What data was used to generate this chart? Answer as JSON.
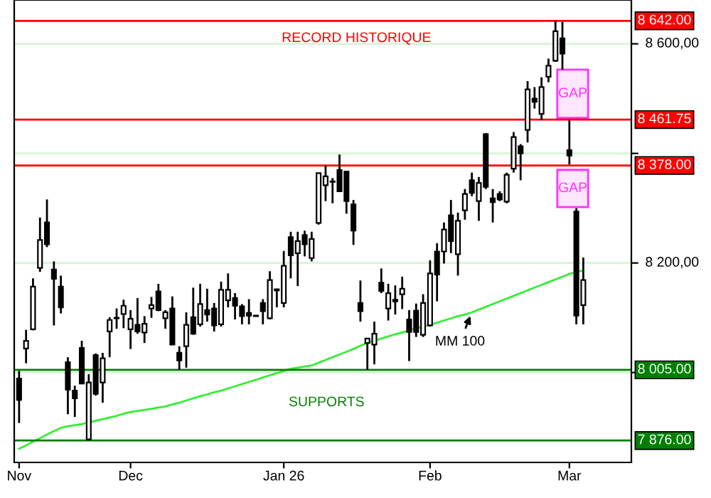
{
  "chart_data": {
    "type": "candlestick",
    "categories": [
      "Nov",
      null,
      null,
      null,
      null,
      null,
      null,
      null,
      null,
      null,
      null,
      null,
      null,
      null,
      null,
      null,
      "Dec",
      null,
      null,
      null,
      null,
      null,
      null,
      null,
      null,
      null,
      null,
      null,
      null,
      null,
      null,
      null,
      null,
      null,
      null,
      null,
      null,
      null,
      "Jan 26",
      null,
      null,
      null,
      null,
      null,
      null,
      null,
      null,
      null,
      null,
      null,
      null,
      null,
      null,
      null,
      null,
      null,
      null,
      null,
      null,
      "Feb",
      null,
      null,
      null,
      null,
      null,
      null,
      null,
      null,
      null,
      null,
      null,
      null,
      null,
      null,
      null,
      null,
      null,
      null,
      null,
      "Mar",
      null,
      null
    ],
    "ohlc": [
      [
        7989,
        8003,
        7908,
        7950
      ],
      [
        8044,
        8078,
        8017,
        8058
      ],
      [
        8079,
        8172,
        8077,
        8157
      ],
      [
        8191,
        8283,
        8184,
        8242
      ],
      [
        8274,
        8316,
        8229,
        8234
      ],
      [
        8188,
        8203,
        8086,
        8171
      ],
      [
        8157,
        8177,
        8108,
        8119
      ],
      [
        8019,
        8028,
        7924,
        7969
      ],
      [
        7967,
        7976,
        7919,
        7953
      ],
      [
        8045,
        8058,
        7980,
        7980
      ],
      [
        7878,
        7997,
        7876,
        7982
      ],
      [
        8032,
        8035,
        7958,
        7961
      ],
      [
        7982,
        8036,
        7945,
        8026
      ],
      [
        8075,
        8101,
        8028,
        8096
      ],
      [
        8099,
        8117,
        8080,
        8100
      ],
      [
        8107,
        8133,
        8081,
        8122
      ],
      [
        8079,
        8114,
        8043,
        8098
      ],
      [
        8087,
        8136,
        8071,
        8075
      ],
      [
        8073,
        8103,
        8054,
        8089
      ],
      [
        8117,
        8138,
        8100,
        8123
      ],
      [
        8148,
        8162,
        8112,
        8114
      ],
      [
        8099,
        8114,
        8080,
        8110
      ],
      [
        8117,
        8139,
        8051,
        8051
      ],
      [
        8036,
        8048,
        8005,
        8022
      ],
      [
        8048,
        8110,
        8009,
        8087
      ],
      [
        8101,
        8155,
        8069,
        8071
      ],
      [
        8088,
        8162,
        8084,
        8125
      ],
      [
        8114,
        8153,
        8093,
        8106
      ],
      [
        8117,
        8127,
        8075,
        8086
      ],
      [
        8088,
        8166,
        8084,
        8151
      ],
      [
        8132,
        8181,
        8119,
        8151
      ],
      [
        8136,
        8145,
        8097,
        8122
      ],
      [
        8121,
        8125,
        8088,
        8103
      ],
      [
        8109,
        8134,
        8088,
        8104
      ],
      [
        8104,
        8105,
        8102,
        8103
      ],
      [
        8127,
        8134,
        8088,
        8112
      ],
      [
        8099,
        8185,
        8097,
        8169
      ],
      [
        8152,
        8153,
        8119,
        8150
      ],
      [
        8127,
        8222,
        8119,
        8195
      ],
      [
        8247,
        8257,
        8172,
        8214
      ],
      [
        8218,
        8257,
        8158,
        8240
      ],
      [
        8251,
        8259,
        8212,
        8234
      ],
      [
        8209,
        8257,
        8203,
        8244
      ],
      [
        8273,
        8365,
        8270,
        8364
      ],
      [
        8342,
        8378,
        8313,
        8358
      ],
      [
        8348,
        8355,
        8309,
        8349
      ],
      [
        8370,
        8398,
        8331,
        8331
      ],
      [
        8367,
        8367,
        8290,
        8313
      ],
      [
        8307,
        8315,
        8233,
        8259
      ],
      [
        8127,
        8168,
        8093,
        8112
      ],
      [
        8054,
        8062,
        8005,
        8062
      ],
      [
        8051,
        8093,
        8015,
        8071
      ],
      [
        8164,
        8190,
        8145,
        8149
      ],
      [
        8117,
        8162,
        8095,
        8145
      ],
      [
        8133,
        8159,
        8106,
        8130
      ],
      [
        8143,
        8175,
        8116,
        8153
      ],
      [
        8097,
        8114,
        8021,
        8074
      ],
      [
        8113,
        8126,
        8065,
        8074
      ],
      [
        8069,
        8143,
        8065,
        8127
      ],
      [
        8086,
        8205,
        8084,
        8181
      ],
      [
        8221,
        8236,
        8130,
        8179
      ],
      [
        8221,
        8274,
        8199,
        8261
      ],
      [
        8287,
        8315,
        8218,
        8240
      ],
      [
        8216,
        8292,
        8177,
        8277
      ],
      [
        8296,
        8335,
        8279,
        8326
      ],
      [
        8351,
        8365,
        8322,
        8328
      ],
      [
        8313,
        8357,
        8277,
        8346
      ],
      [
        8435,
        8437,
        8335,
        8339
      ],
      [
        8318,
        8335,
        8274,
        8311
      ],
      [
        8326,
        8331,
        8313,
        8316
      ],
      [
        8312,
        8365,
        8309,
        8361
      ],
      [
        8372,
        8439,
        8365,
        8430
      ],
      [
        8413,
        8417,
        8351,
        8400
      ],
      [
        8443,
        8532,
        8420,
        8517
      ],
      [
        8500,
        8521,
        8482,
        8494
      ],
      [
        8472,
        8539,
        8461,
        8521
      ],
      [
        8540,
        8573,
        8530,
        8560
      ],
      [
        8569,
        8642,
        8567,
        8623
      ],
      [
        8610,
        8640,
        8553,
        8582
      ],
      [
        8406,
        8462,
        8380,
        8396
      ],
      [
        8294,
        8300,
        8088,
        8104
      ],
      [
        8123,
        8210,
        8088,
        8169
      ]
    ],
    "series": [
      {
        "name": "MM 100",
        "type": "line",
        "color": "#33ee33",
        "values": [
          7861,
          7867,
          7874,
          7880,
          7887,
          7893,
          7899,
          7902,
          7904,
          7906,
          7909,
          7912,
          7915,
          7918,
          7921,
          7925,
          7928,
          7930,
          7932,
          7934,
          7936,
          7938,
          7942,
          7945,
          7949,
          7953,
          7957,
          7960,
          7964,
          7967,
          7971,
          7975,
          7979,
          7983,
          7987,
          7991,
          7995,
          7999,
          8003,
          8007,
          8009,
          8011,
          8013,
          8018,
          8023,
          8028,
          8033,
          8038,
          8043,
          8049,
          8054,
          8058,
          8062,
          8066,
          8070,
          8073,
          8077,
          8081,
          8084,
          8087,
          8091,
          8095,
          8099,
          8103,
          8106,
          8110,
          8115,
          8120,
          8125,
          8130,
          8135,
          8140,
          8145,
          8150,
          8155,
          8160,
          8165,
          8170,
          8175,
          8180,
          8184,
          8186
        ]
      }
    ],
    "ylim": [
      7836,
      8680
    ],
    "yticks": [
      {
        "value": 8000,
        "label": null
      },
      {
        "value": 8200,
        "label": "8 200,00"
      },
      {
        "value": 8400,
        "label": null
      },
      {
        "value": 8600,
        "label": "8 600,00"
      }
    ],
    "grid": "y",
    "ref_lines": [
      {
        "axis": "y",
        "value": 8642,
        "label": "8 642.00",
        "color": "#ff0000"
      },
      {
        "axis": "y",
        "value": 8461.75,
        "label": "8 461.75",
        "color": "#ff0000"
      },
      {
        "axis": "y",
        "value": 8378,
        "label": "8 378.00",
        "color": "#ff0000"
      },
      {
        "axis": "y",
        "value": 8005,
        "label": "8 005.00",
        "color": "#008000"
      },
      {
        "axis": "y",
        "value": 7876,
        "label": "7 876.00",
        "color": "#008000"
      }
    ],
    "bands": [
      {
        "axis": "y",
        "from": 8553,
        "to": 8465,
        "label": "GAP",
        "color": "#ff33ff"
      },
      {
        "axis": "y",
        "from": 8370,
        "to": 8302,
        "label": "GAP",
        "color": "#ff33ff"
      }
    ],
    "annotations": [
      "RECORD HISTORIQUE",
      "SUPPORTS"
    ]
  }
}
